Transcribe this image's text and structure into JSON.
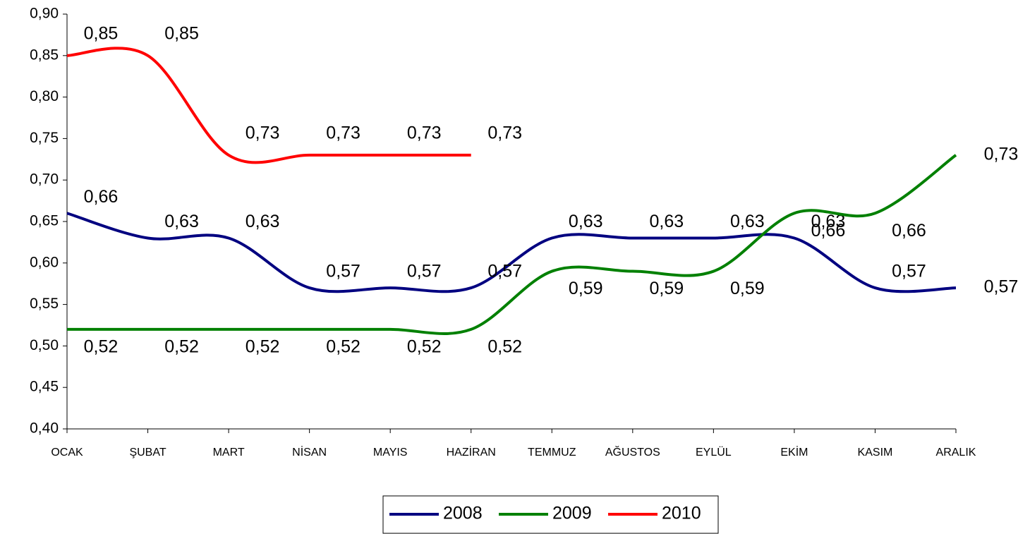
{
  "chart_data": {
    "type": "line",
    "categories": [
      "OCAK",
      "ŞUBAT",
      "MART",
      "NİSAN",
      "MAYIS",
      "HAZİRAN",
      "TEMMUZ",
      "AĞUSTOS",
      "EYLÜL",
      "EKİM",
      "KASIM",
      "ARALIK"
    ],
    "series": [
      {
        "name": "2008",
        "color": "#000080",
        "values": [
          0.66,
          0.63,
          0.63,
          0.57,
          0.57,
          0.57,
          0.63,
          0.63,
          0.63,
          0.63,
          0.57,
          0.57
        ],
        "value_labels": [
          "0,66",
          "0,63",
          "0,63",
          "0,57",
          "0,57",
          "0,57",
          "0,63",
          "0,63",
          "0,63",
          "0,63",
          "0,57",
          "0,57"
        ]
      },
      {
        "name": "2009",
        "color": "#008000",
        "values": [
          0.52,
          0.52,
          0.52,
          0.52,
          0.52,
          0.52,
          0.59,
          0.59,
          0.59,
          0.66,
          0.66,
          0.73
        ],
        "value_labels": [
          "0,52",
          "0,52",
          "0,52",
          "0,52",
          "0,52",
          "0,52",
          "0,59",
          "0,59",
          "0,59",
          "0,66",
          "0,66",
          "0,73"
        ]
      },
      {
        "name": "2010",
        "color": "#ff0000",
        "values": [
          0.85,
          0.85,
          0.73,
          0.73,
          0.73,
          0.73,
          null,
          null,
          null,
          null,
          null,
          null
        ],
        "value_labels": [
          "0,85",
          "0,85",
          "0,73",
          "0,73",
          "0,73",
          "0,73",
          null,
          null,
          null,
          null,
          null,
          null
        ]
      }
    ],
    "ylim": [
      0.4,
      0.9
    ],
    "yticks": [
      {
        "value": 0.4,
        "label": "0,40"
      },
      {
        "value": 0.45,
        "label": "0,45"
      },
      {
        "value": 0.5,
        "label": "0,50"
      },
      {
        "value": 0.55,
        "label": "0,55"
      },
      {
        "value": 0.6,
        "label": "0,60"
      },
      {
        "value": 0.65,
        "label": "0,65"
      },
      {
        "value": 0.7,
        "label": "0,70"
      },
      {
        "value": 0.75,
        "label": "0,75"
      },
      {
        "value": 0.8,
        "label": "0,80"
      },
      {
        "value": 0.85,
        "label": "0,85"
      },
      {
        "value": 0.9,
        "label": "0,90"
      }
    ],
    "grid": false,
    "legend": "bottom"
  }
}
